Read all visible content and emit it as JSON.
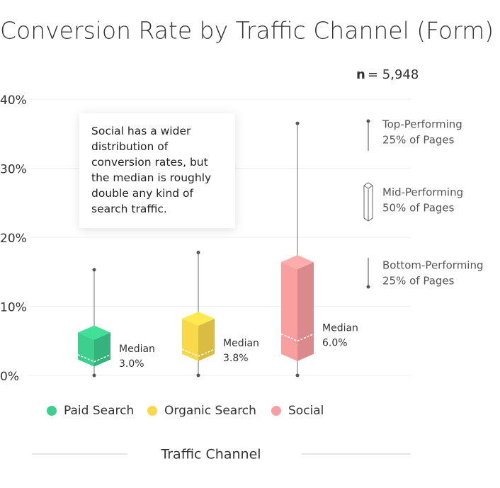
{
  "chart_data": {
    "type": "box",
    "title": "Conversion Rate by Traffic Channel (Form)",
    "n_label": "n",
    "n_value": "= 5,948",
    "annotation": "Social has a wider distribution of conversion rates, but the median is roughly double any kind of search traffic.",
    "x_label": "Traffic Channel",
    "median_text": "Median",
    "ylim": [
      0,
      40
    ],
    "yticks": [
      {
        "value": 0,
        "label": "0%"
      },
      {
        "value": 10,
        "label": "10%"
      },
      {
        "value": 20,
        "label": "20%"
      },
      {
        "value": 30,
        "label": "30%"
      },
      {
        "value": 40,
        "label": "40%"
      }
    ],
    "grid": true,
    "series": [
      {
        "name": "Paid Search",
        "color": "#3ccf8e",
        "min": 0,
        "q1": 2.3,
        "median": 3.0,
        "q3": 6.2,
        "max": 15.3,
        "median_label": "3.0%"
      },
      {
        "name": "Organic Search",
        "color": "#f9d84a",
        "min": 0,
        "q1": 3.1,
        "median": 3.8,
        "q3": 8.2,
        "max": 17.8,
        "median_label": "3.8%"
      },
      {
        "name": "Social",
        "color": "#fa9f9f",
        "min": 0,
        "q1": 3.1,
        "median": 6.0,
        "q3": 16.4,
        "max": 36.5,
        "median_label": "6.0%"
      }
    ],
    "key": [
      {
        "line1": "Top-Performing",
        "line2": "25% of Pages"
      },
      {
        "line1": "Mid-Performing",
        "line2": "50% of Pages"
      },
      {
        "line1": "Bottom-Performing",
        "line2": "25% of Pages"
      }
    ]
  }
}
